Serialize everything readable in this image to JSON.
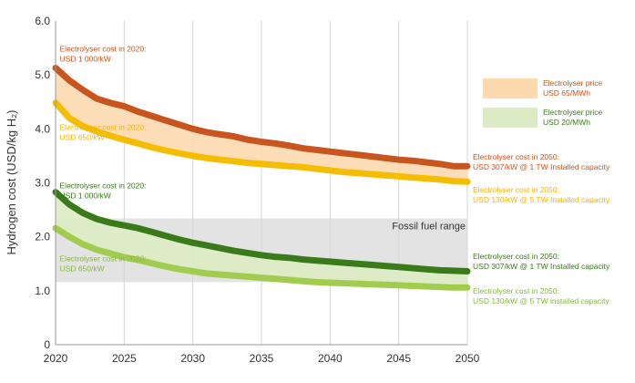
{
  "chart_data": {
    "type": "line",
    "ylabel": "Hydrogen cost (USD/kg H₂)",
    "xlabel": "",
    "xlim": [
      2020,
      2050
    ],
    "ylim": [
      0,
      6
    ],
    "x_ticks": [
      2020,
      2025,
      2030,
      2035,
      2040,
      2045,
      2050
    ],
    "y_ticks": [
      "0",
      "1.0",
      "2.0",
      "3.0",
      "4.0",
      "5.0",
      "6.0"
    ],
    "grid": "vertical",
    "x": [
      2020,
      2021,
      2022,
      2023,
      2024,
      2025,
      2026,
      2027,
      2028,
      2029,
      2030,
      2031,
      2032,
      2033,
      2034,
      2035,
      2036,
      2037,
      2038,
      2039,
      2040,
      2041,
      2042,
      2043,
      2044,
      2045,
      2046,
      2047,
      2048,
      2049,
      2050
    ],
    "series": [
      {
        "key": "s1",
        "color": "#c8541e",
        "values": [
          5.13,
          4.9,
          4.72,
          4.56,
          4.48,
          4.42,
          4.32,
          4.24,
          4.16,
          4.08,
          4.0,
          3.94,
          3.9,
          3.86,
          3.8,
          3.76,
          3.73,
          3.69,
          3.64,
          3.61,
          3.58,
          3.55,
          3.52,
          3.49,
          3.46,
          3.43,
          3.41,
          3.38,
          3.35,
          3.31,
          3.31
        ]
      },
      {
        "key": "s2",
        "color": "#f5bd00",
        "values": [
          4.48,
          4.2,
          4.05,
          3.95,
          3.87,
          3.8,
          3.73,
          3.66,
          3.6,
          3.55,
          3.5,
          3.46,
          3.43,
          3.4,
          3.37,
          3.35,
          3.33,
          3.31,
          3.29,
          3.26,
          3.23,
          3.2,
          3.18,
          3.16,
          3.14,
          3.12,
          3.1,
          3.08,
          3.06,
          3.03,
          3.02
        ]
      },
      {
        "key": "s3",
        "color": "#3b7a1a",
        "values": [
          2.83,
          2.6,
          2.44,
          2.33,
          2.26,
          2.21,
          2.16,
          2.09,
          2.02,
          1.95,
          1.89,
          1.84,
          1.79,
          1.74,
          1.7,
          1.66,
          1.63,
          1.61,
          1.58,
          1.56,
          1.54,
          1.52,
          1.5,
          1.48,
          1.46,
          1.44,
          1.42,
          1.4,
          1.38,
          1.37,
          1.36
        ]
      },
      {
        "key": "s4",
        "color": "#a2cc50",
        "values": [
          2.16,
          2.0,
          1.86,
          1.76,
          1.69,
          1.62,
          1.57,
          1.51,
          1.45,
          1.4,
          1.36,
          1.32,
          1.3,
          1.28,
          1.26,
          1.24,
          1.22,
          1.2,
          1.18,
          1.16,
          1.15,
          1.14,
          1.13,
          1.12,
          1.11,
          1.1,
          1.09,
          1.08,
          1.07,
          1.06,
          1.06
        ]
      }
    ],
    "bands": [
      {
        "upper": "s1",
        "lower": "s2",
        "color": "#fdd9b0"
      },
      {
        "upper": "s3",
        "lower": "s4",
        "color": "#dcebc3"
      }
    ],
    "fossil_range": {
      "label": "Fossil fuel range",
      "min": 1.16,
      "max": 2.34,
      "color": "#e3e3e3"
    },
    "annotations": [
      {
        "series": "s1",
        "color": "#c8541e",
        "line1": "Electrolyser cost in 2020:",
        "line2": "USD 1 000/kW",
        "x": 2020.3,
        "y": 5.43
      },
      {
        "series": "s2",
        "color": "#f5b400",
        "line1": "Electrolyser cost in 2020:",
        "line2": "USD 650/kW",
        "x": 2020.3,
        "y": 3.98
      },
      {
        "series": "s3",
        "color": "#3b7a1a",
        "line1": "Electrolyser cost in 2020:",
        "line2": "USD 1 000/kW",
        "x": 2020.3,
        "y": 2.9
      },
      {
        "series": "s4",
        "color": "#86b83d",
        "line1": "Electrolyser cost in 2020:",
        "line2": "USD 650/kW",
        "x": 2020.3,
        "y": 1.55
      },
      {
        "series": "s1",
        "color": "#c8541e",
        "line1": "Electrolyser cost in 2050:",
        "line2": "USD 307/kW @ 1 TW Installed capacity",
        "x": 2050.4,
        "y": 3.43
      },
      {
        "series": "s2",
        "color": "#f5b400",
        "line1": "Electrolyser cost in 2050:",
        "line2": "USD 130/kW @ 5 TW Installed capacity",
        "x": 2050.4,
        "y": 2.82
      },
      {
        "series": "s3",
        "color": "#3b7a1a",
        "line1": "Electrolyser cost in 2050:",
        "line2": "USD 307/kW @ 1 TW Installed capacity",
        "x": 2050.4,
        "y": 1.59
      },
      {
        "series": "s4",
        "color": "#86b83d",
        "line1": "Electrolyser cost in 2050:",
        "line2": "USD 130/kW @ 5 TW installed capacity",
        "x": 2050.4,
        "y": 0.95
      }
    ],
    "legend": {
      "placement": "right",
      "items": [
        {
          "line1": "Electrolyser price",
          "line2": "USD 65/MWh",
          "swatch": "#fdd9b0",
          "text_color": "#c8541e"
        },
        {
          "line1": "Electrolyser price",
          "line2": "USD 20/MWh",
          "swatch": "#dcebc3",
          "text_color": "#3b7a1a"
        }
      ]
    }
  }
}
